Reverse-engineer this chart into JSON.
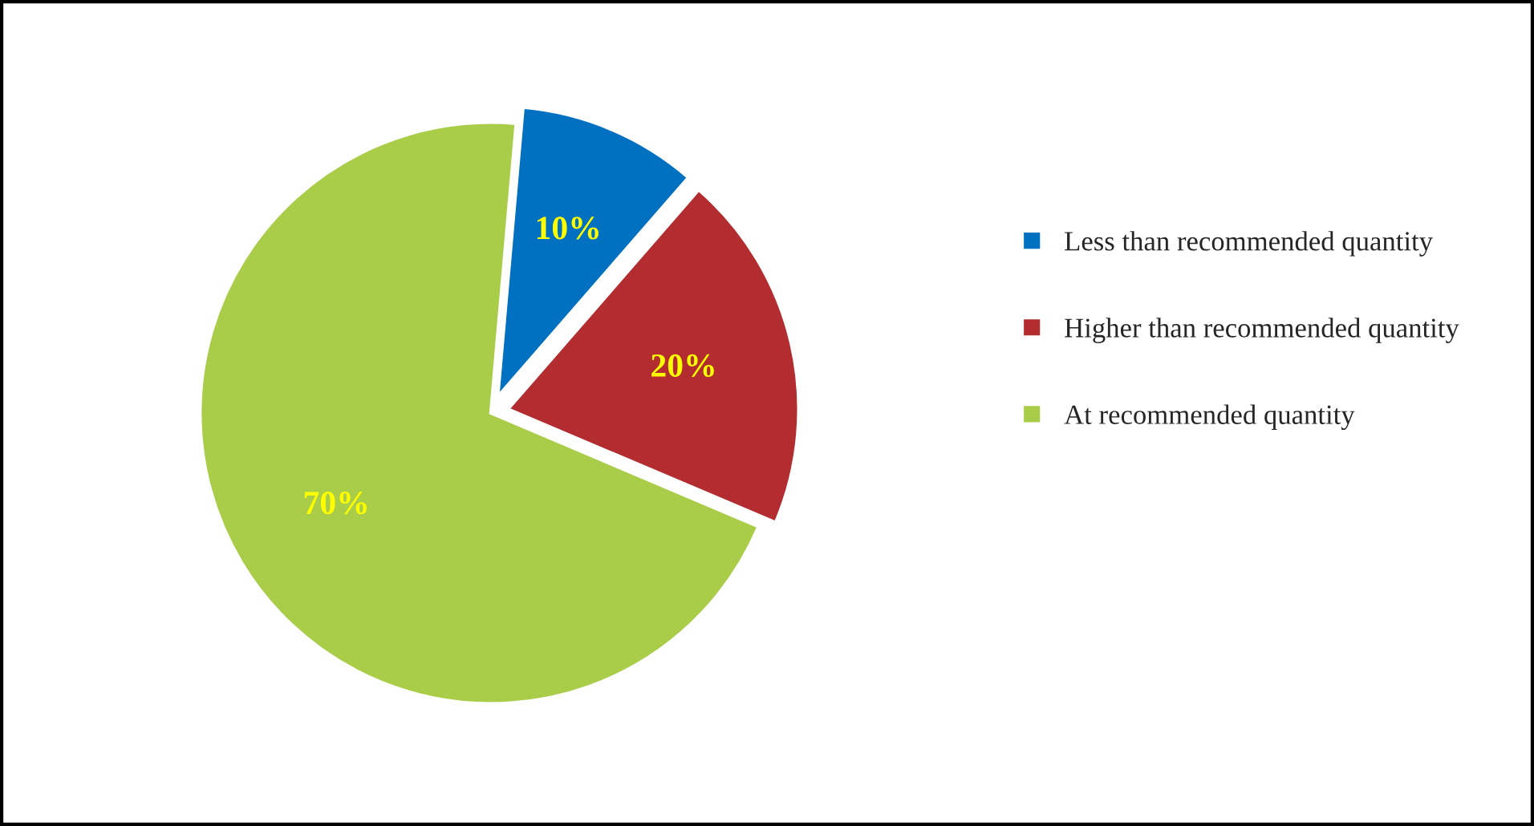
{
  "chart_data": {
    "type": "pie",
    "categories": [
      "Less than recommended quantity",
      "Higher than recommended quantity",
      "At recommended quantity"
    ],
    "values": [
      10,
      20,
      70
    ],
    "colors": [
      "#0070c0",
      "#b22c30",
      "#a9cd48"
    ],
    "value_labels": [
      "10%",
      "20%",
      "70%"
    ],
    "legend": "right"
  }
}
